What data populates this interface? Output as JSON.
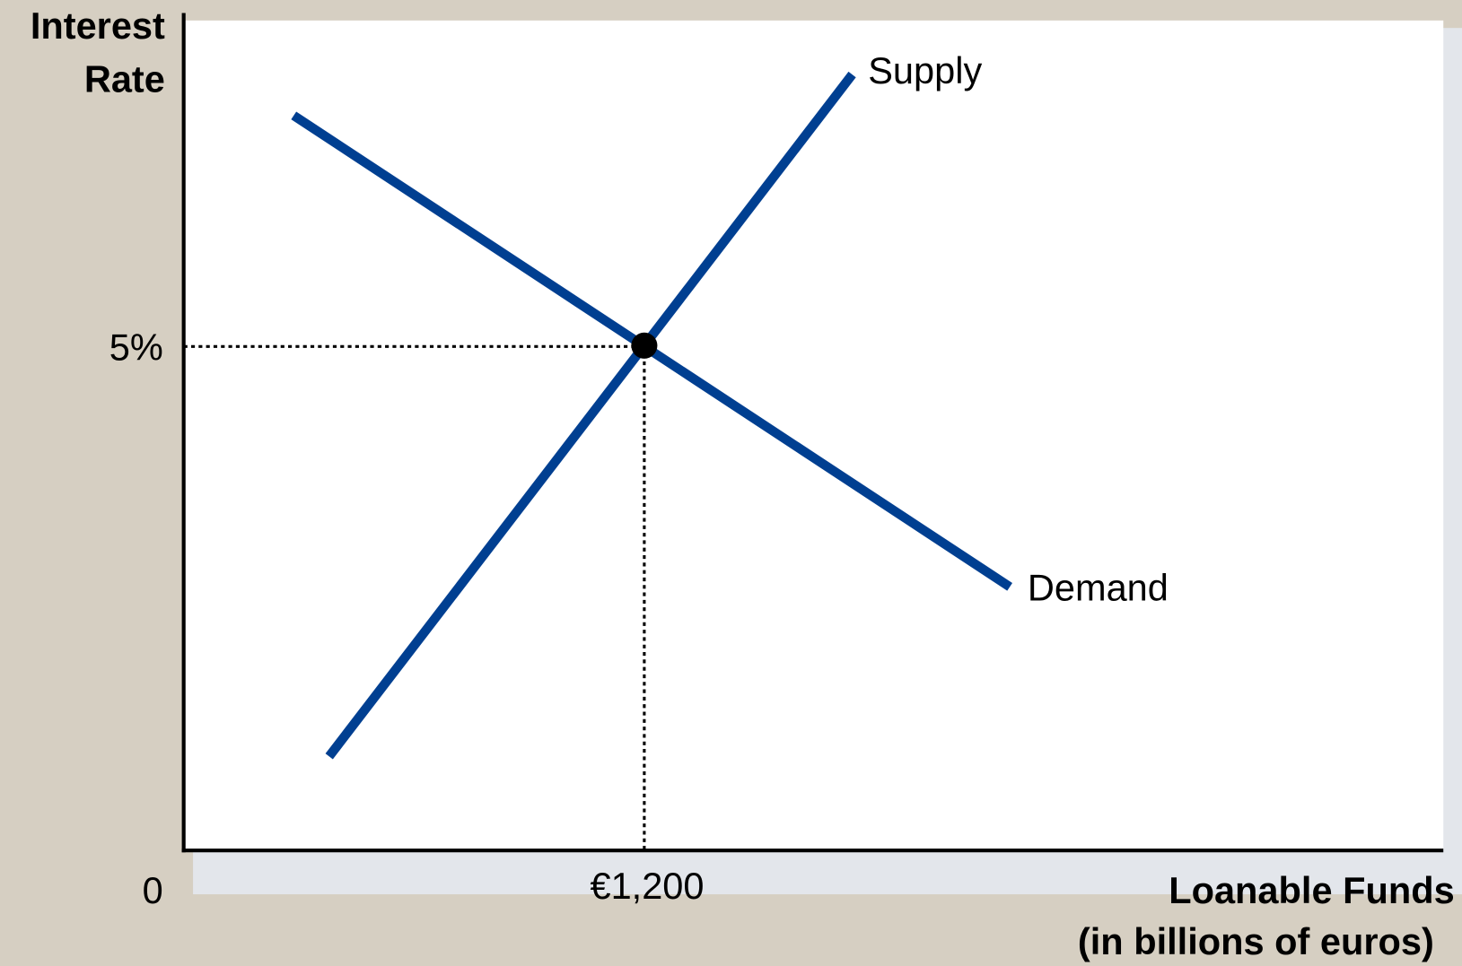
{
  "y_axis_label": [
    "Interest",
    "Rate"
  ],
  "x_axis_label": [
    "Loanable Funds",
    "(in billions of euros)"
  ],
  "origin_label": "0",
  "y_tick_label": "5%",
  "x_tick_label": "€1,200",
  "curves": {
    "supply": "Supply",
    "demand": "Demand"
  }
}
